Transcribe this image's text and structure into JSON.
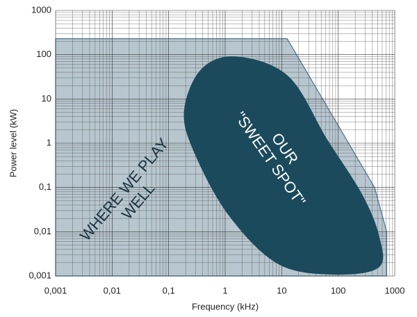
{
  "chart_data": {
    "type": "area-regions",
    "x_label": "Frequency (kHz)",
    "y_label": "Power level (kW)",
    "x_log": true,
    "y_log": true,
    "grid": true,
    "minor_grid": true,
    "xlim": [
      0.001,
      1000
    ],
    "ylim": [
      0.001,
      1000
    ],
    "xticks": [
      {
        "value": 0.001,
        "label": "0,001"
      },
      {
        "value": 0.01,
        "label": "0,01"
      },
      {
        "value": 0.1,
        "label": "0,1"
      },
      1,
      10,
      100,
      1000
    ],
    "yticks": [
      {
        "value": 0.001,
        "label": "0,001"
      },
      {
        "value": 0.01,
        "label": "0,01"
      },
      {
        "value": 0.1,
        "label": "0,1"
      },
      1,
      10,
      100,
      1000
    ],
    "regions": [
      {
        "shape": "polygon",
        "color": "#9fb3bf",
        "stroke": "#4a7590",
        "x": [
          0.001,
          12.5,
          440,
          720,
          720,
          0.001
        ],
        "y": [
          230,
          230,
          0.1,
          0.01,
          0.001,
          0.001
        ]
      },
      {
        "shape": "smooth",
        "color": "#1b4a5c",
        "stroke": "#1b4a5c",
        "x": [
          1.58,
          13,
          63,
          260,
          520,
          520,
          83,
          8.7,
          1.19,
          0.29,
          0.19,
          0.38
        ],
        "y": [
          89,
          32,
          1.2,
          0.07,
          0.008,
          0.0016,
          0.0011,
          0.0019,
          0.023,
          0.6,
          5.3,
          46
        ]
      }
    ],
    "annotations": [
      {
        "lines": [
          "WHERE WE PLAY",
          "WELL"
        ]
      },
      {
        "lines": [
          "OUR",
          "\"SWEET SPOT\""
        ]
      }
    ]
  }
}
